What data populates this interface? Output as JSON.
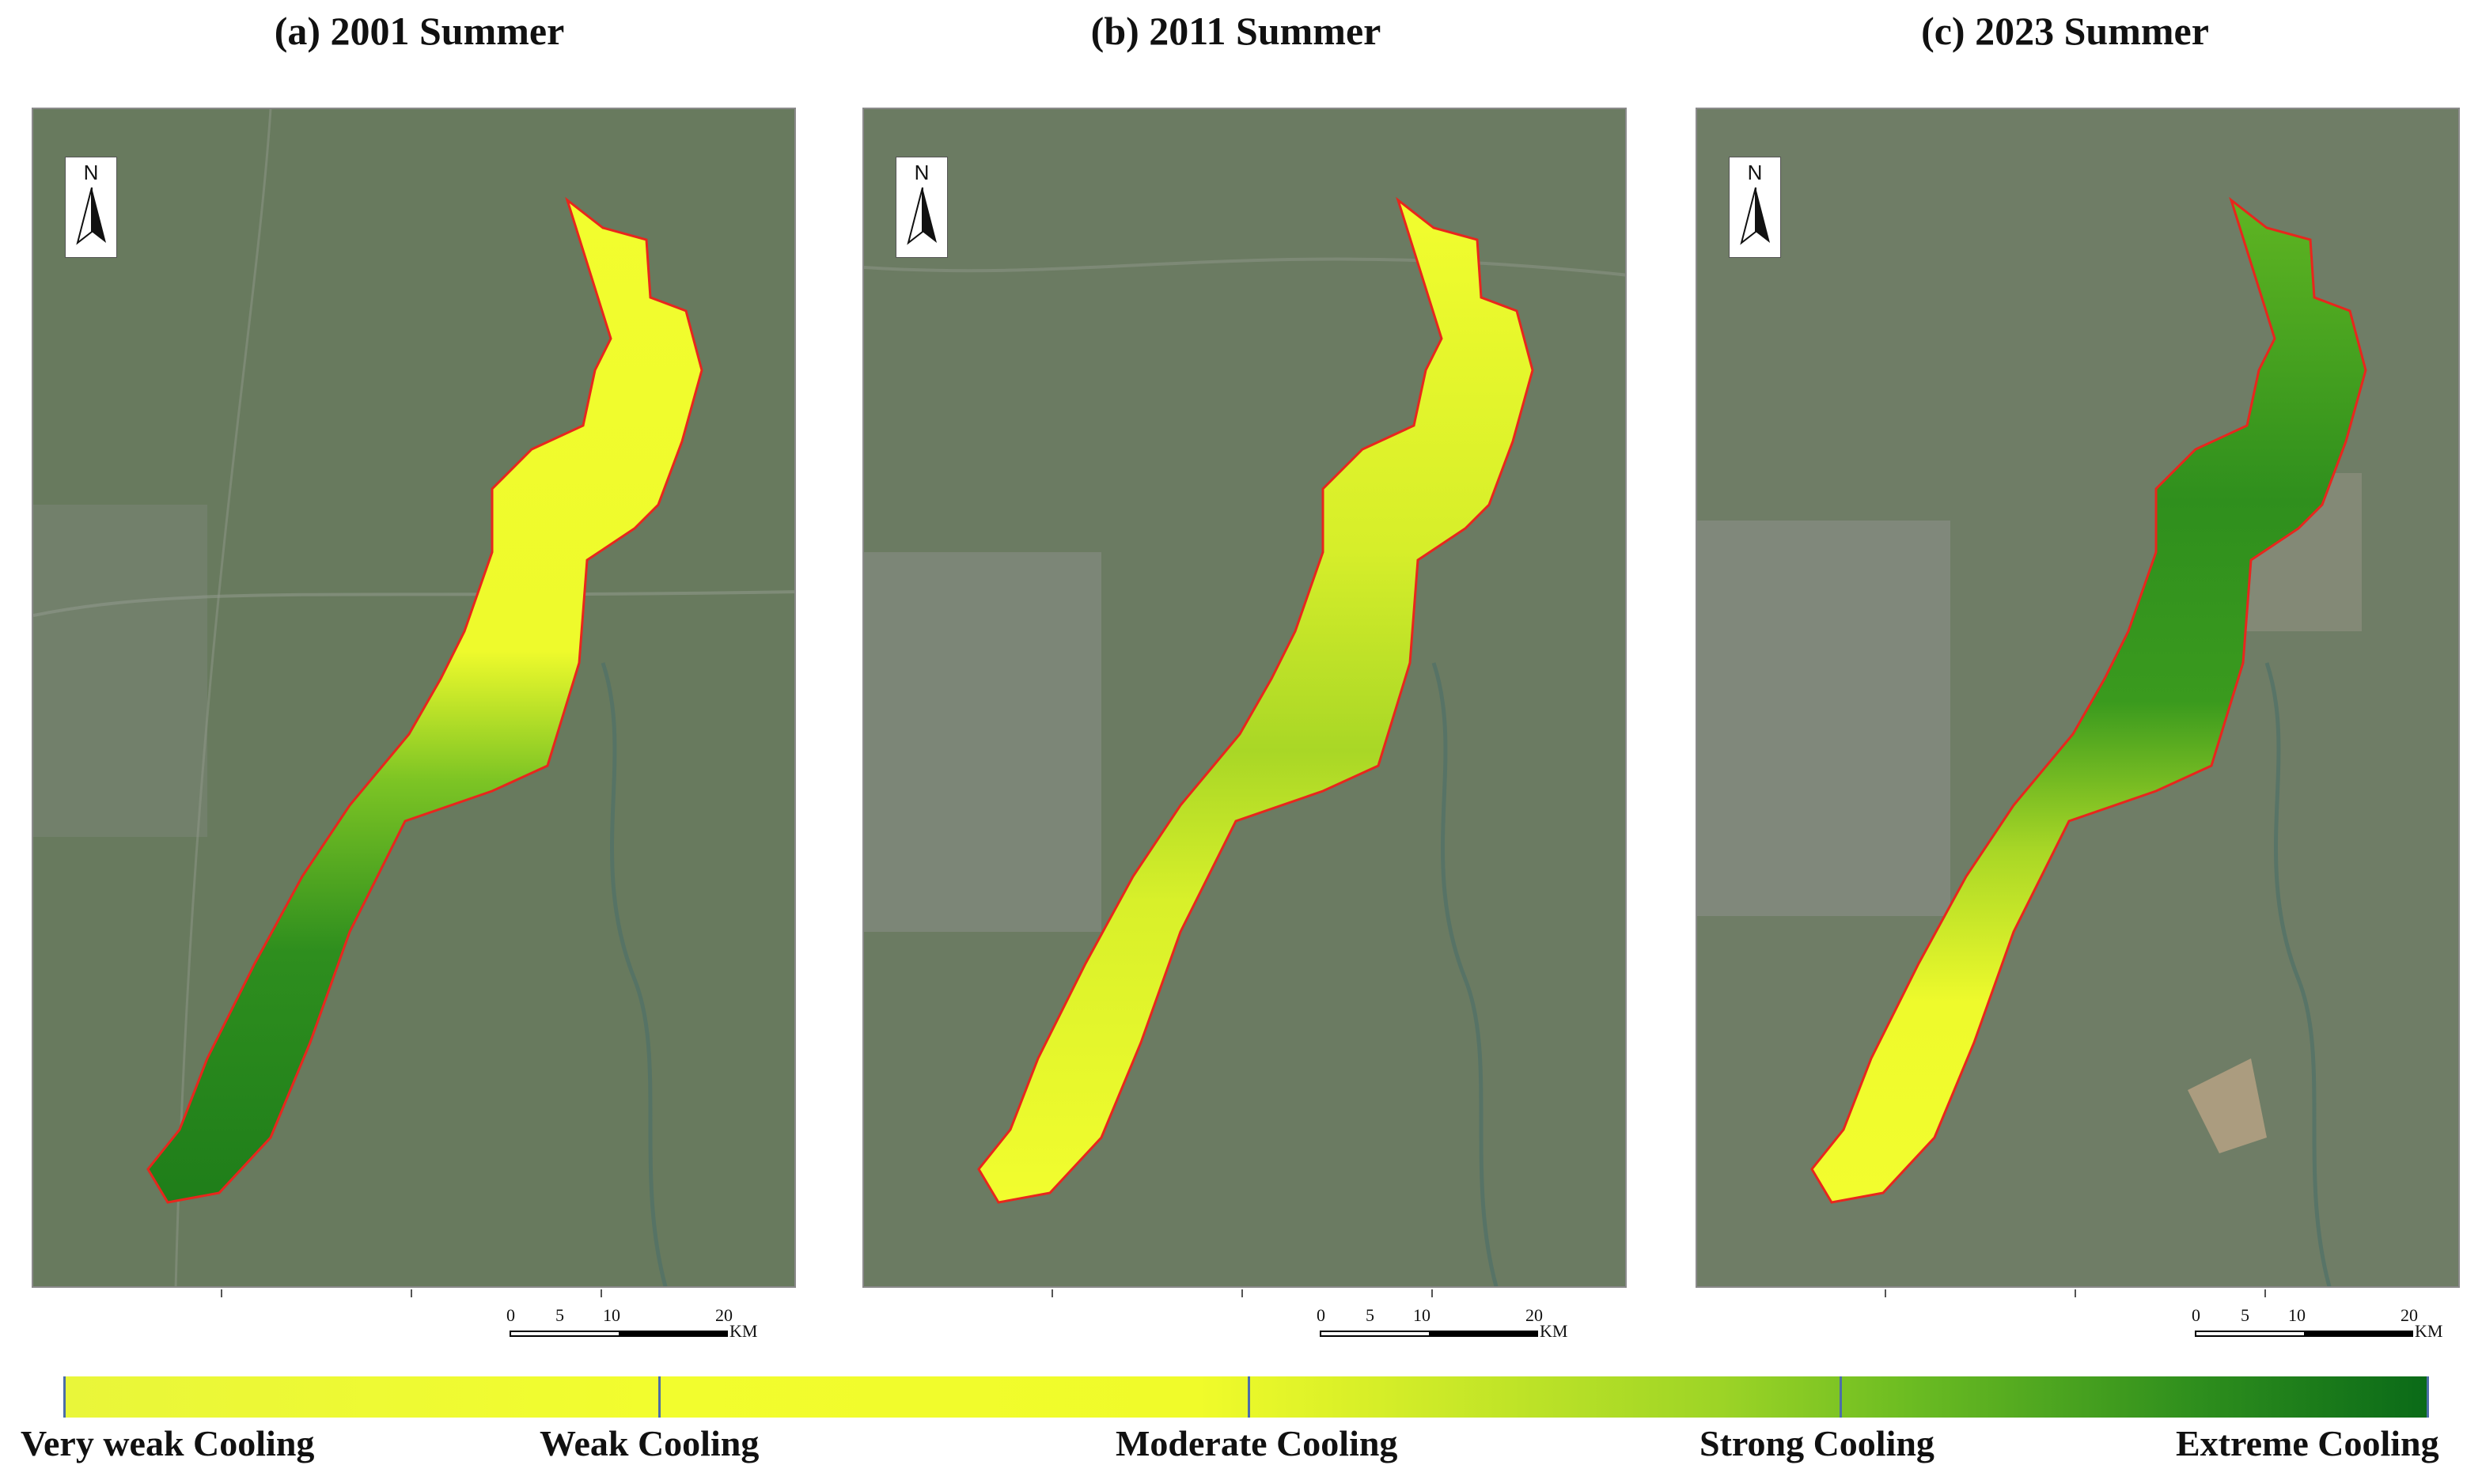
{
  "panels": [
    {
      "title": "(a) 2001 Summer",
      "year": 2001,
      "season": "Summer",
      "dominant_class": "Strong/Extreme Cooling (south)"
    },
    {
      "title": "(b) 2011 Summer",
      "year": 2011,
      "season": "Summer",
      "dominant_class": "Very weak Cooling"
    },
    {
      "title": "(c) 2023 Summer",
      "year": 2023,
      "season": "Summer",
      "dominant_class": "Moderate/Strong Cooling (center)"
    }
  ],
  "north_arrow": {
    "letter": "N",
    "icon": "north-arrow-icon"
  },
  "scale_bar": {
    "labels": [
      "0",
      "5",
      "10",
      "20"
    ],
    "unit": "KM"
  },
  "legend": {
    "labels": [
      "Very weak Cooling",
      "Weak Cooling",
      "Moderate Cooling",
      "Strong Cooling",
      "Extreme Cooling"
    ],
    "color_low": "#f2fd2e",
    "color_high": "#0a6a18"
  },
  "colors": {
    "boundary": "#e8261d",
    "basemap": "#687a5e",
    "very_weak": "#f2fd2e",
    "moderate": "#c3e52a",
    "strong": "#4aa320",
    "extreme": "#0d6e19"
  }
}
